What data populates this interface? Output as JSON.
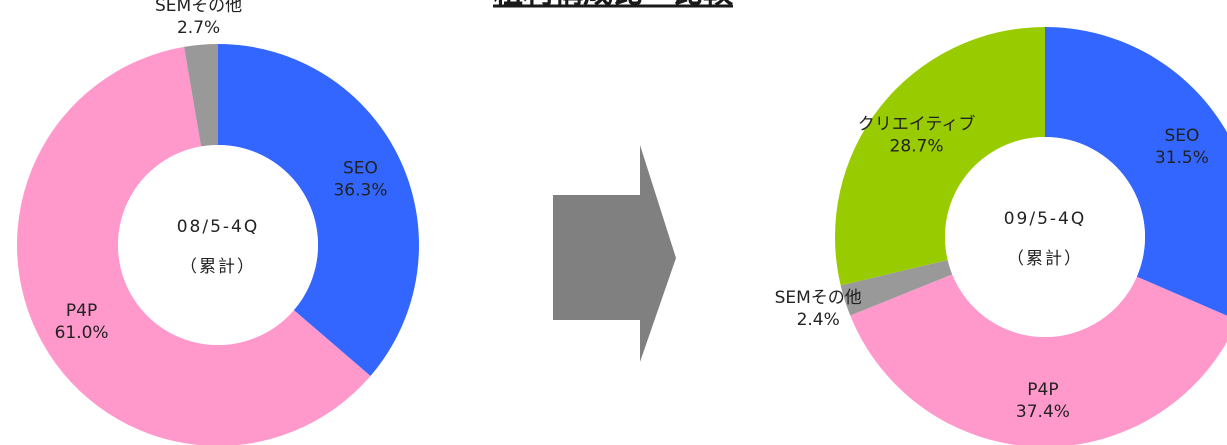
{
  "title": "粗利構成比　比較",
  "chart_data": [
    {
      "type": "donut",
      "center_text": [
        "08/5-4Q",
        "（累計）"
      ],
      "categories": [
        "SEO",
        "P4P",
        "SEMその他"
      ],
      "values": [
        36.3,
        61.0,
        2.7
      ],
      "value_labels": [
        "36.3%",
        "61.0%",
        "2.7%"
      ],
      "colors": [
        "#3366ff",
        "#ff99cc",
        "#999999"
      ]
    },
    {
      "type": "donut",
      "center_text": [
        "09/5-4Q",
        "（累計）"
      ],
      "categories": [
        "SEO",
        "P4P",
        "SEMその他",
        "クリエイティブ"
      ],
      "values": [
        31.5,
        37.4,
        2.4,
        28.7
      ],
      "value_labels": [
        "31.5%",
        "37.4%",
        "2.4%",
        "28.7%"
      ],
      "colors": [
        "#3366ff",
        "#ff99cc",
        "#999999",
        "#99cc00"
      ]
    }
  ]
}
